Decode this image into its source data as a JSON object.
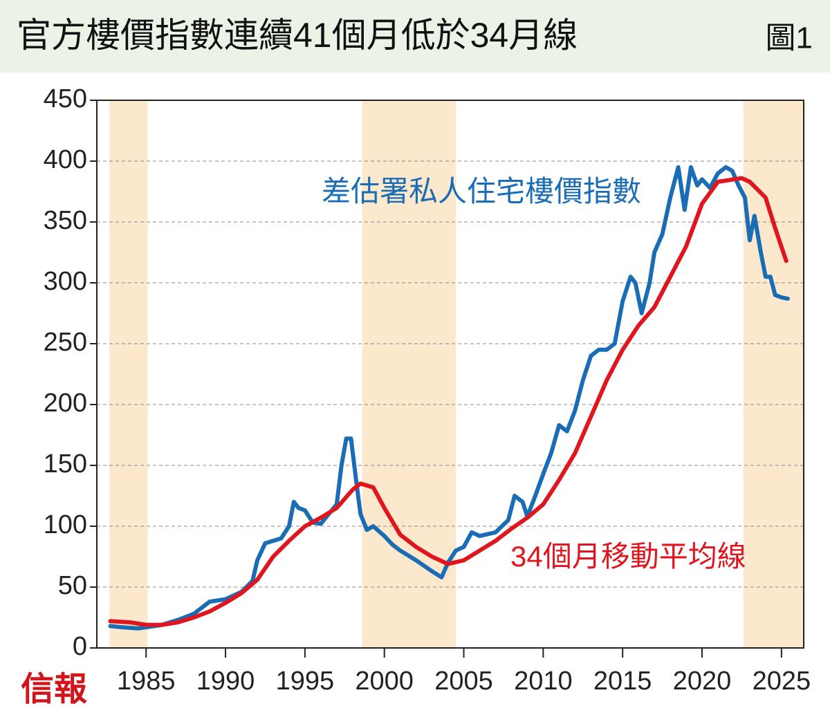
{
  "chart_data": {
    "type": "line",
    "title": "官方樓價指數連續41個月低於34月線",
    "figure_label": "圖1",
    "logo": "信報",
    "annotations": [
      "差估署私人住宅樓價指數",
      "34個月移動平均線"
    ],
    "xlim": [
      1981.9,
      2026.4
    ],
    "xticks": [
      1985,
      1990,
      1995,
      2000,
      2005,
      2010,
      2015,
      2020,
      2025
    ],
    "ylim": [
      0,
      450
    ],
    "yticks": [
      0,
      50,
      100,
      150,
      200,
      250,
      300,
      350,
      400,
      450
    ],
    "grid": true,
    "shaded_ranges": [
      [
        1982.7,
        1985.1
      ],
      [
        1998.6,
        2004.5
      ],
      [
        2022.6,
        2026.4
      ]
    ],
    "shade_color": "#fce8cc",
    "series": [
      {
        "name": "差估署私人住宅樓價指數",
        "color": "#1a6db5",
        "x": [
          1982.75,
          1983.5,
          1984.5,
          1985,
          1986,
          1987,
          1988,
          1989,
          1990,
          1991,
          1991.7,
          1992,
          1992.5,
          1993,
          1993.5,
          1994,
          1994.3,
          1994.6,
          1995,
          1995.5,
          1996,
          1996.5,
          1997,
          1997.3,
          1997.6,
          1997.9,
          1998.2,
          1998.5,
          1998.9,
          1999.3,
          2000,
          2000.5,
          2001,
          2002,
          2003,
          2003.6,
          2004,
          2004.5,
          2005,
          2005.5,
          2006,
          2007,
          2007.8,
          2008.2,
          2008.7,
          2009,
          2009.5,
          2010,
          2010.5,
          2011,
          2011.5,
          2012,
          2012.5,
          2013,
          2013.5,
          2014,
          2014.5,
          2015,
          2015.5,
          2015.8,
          2016.2,
          2016.7,
          2017,
          2017.5,
          2018,
          2018.5,
          2018.9,
          2019.3,
          2019.7,
          2020,
          2020.5,
          2021,
          2021.5,
          2021.9,
          2022.3,
          2022.7,
          2023,
          2023.3,
          2023.7,
          2024,
          2024.3,
          2024.6,
          2025,
          2025.4
        ],
        "values": [
          18,
          17,
          16,
          17,
          19,
          23,
          28,
          38,
          40,
          46,
          55,
          72,
          86,
          88,
          90,
          100,
          120,
          115,
          113,
          103,
          102,
          110,
          118,
          150,
          172,
          172,
          140,
          110,
          97,
          100,
          92,
          85,
          80,
          72,
          63,
          58,
          70,
          80,
          83,
          95,
          92,
          95,
          105,
          125,
          120,
          108,
          125,
          143,
          160,
          183,
          178,
          195,
          220,
          240,
          245,
          245,
          250,
          285,
          305,
          300,
          275,
          300,
          325,
          340,
          370,
          395,
          360,
          395,
          380,
          385,
          378,
          390,
          395,
          392,
          380,
          370,
          335,
          355,
          325,
          305,
          305,
          290,
          288,
          287
        ]
      },
      {
        "name": "34個月移動平均線",
        "color": "#e0161e",
        "x": [
          1982.75,
          1984,
          1985,
          1986,
          1987,
          1988,
          1989,
          1990,
          1991,
          1992,
          1993,
          1994,
          1995,
          1996,
          1997,
          1998,
          1998.5,
          1999.3,
          2000,
          2001,
          2002,
          2003,
          2004,
          2005,
          2006,
          2007,
          2008,
          2009,
          2010,
          2011,
          2012,
          2013,
          2014,
          2015,
          2016,
          2017,
          2018,
          2019,
          2020,
          2021,
          2022,
          2022.5,
          2023,
          2024,
          2024.6,
          2025.3
        ],
        "values": [
          22,
          21,
          19,
          19,
          21,
          25,
          30,
          37,
          45,
          56,
          75,
          88,
          100,
          107,
          115,
          130,
          135,
          132,
          115,
          93,
          83,
          75,
          69,
          72,
          80,
          88,
          98,
          107,
          118,
          138,
          160,
          190,
          220,
          245,
          265,
          280,
          305,
          330,
          365,
          383,
          385,
          386,
          383,
          370,
          345,
          318
        ]
      }
    ]
  }
}
